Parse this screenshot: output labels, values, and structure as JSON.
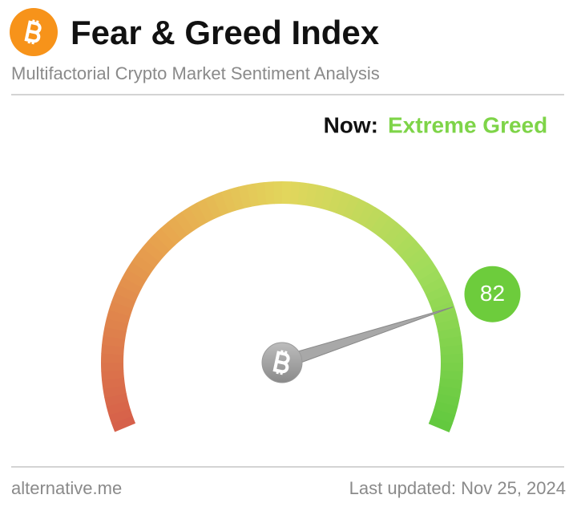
{
  "header": {
    "title": "Fear & Greed Index",
    "subtitle": "Multifactorial Crypto Market Sentiment Analysis"
  },
  "chart_data": {
    "type": "gauge",
    "label": "Now:",
    "classification": "Extreme Greed",
    "value": 82,
    "range": [
      0,
      100
    ],
    "color": "#6dcc3c"
  },
  "footer": {
    "source": "alternative.me",
    "updated": "Last updated: Nov 25, 2024"
  }
}
